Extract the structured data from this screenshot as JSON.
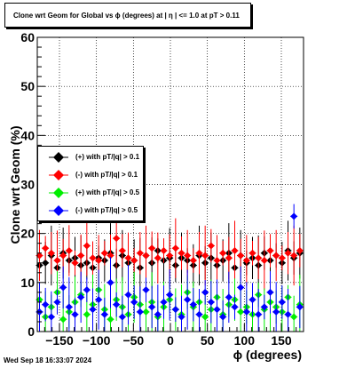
{
  "chart_data": {
    "type": "scatter",
    "title": "Clone wrt Geom for Global vs ϕ (degrees) at |  η | <= 1.0 at pT > 0.11",
    "xlabel": "ϕ (degrees)",
    "ylabel": "Clone wrt Geom (%)",
    "xlim": [
      -180,
      180
    ],
    "ylim": [
      0,
      60
    ],
    "xticks": [
      -150,
      -100,
      -50,
      0,
      50,
      100,
      150
    ],
    "xtick_labels": [
      "−150",
      "−100",
      "−50",
      "0",
      "50",
      "100",
      "150"
    ],
    "yticks": [
      0,
      10,
      20,
      30,
      40,
      50,
      60
    ],
    "grid": true,
    "legend_placement": "middle-left",
    "series": [
      {
        "name": "(+) with pT/|q| > 0.1",
        "color": "#000000",
        "marker": "diamond",
        "x": [
          -177,
          -169,
          -161,
          -153,
          -145,
          -137,
          -129,
          -121,
          -113,
          -105,
          -97,
          -89,
          -81,
          -73,
          -65,
          -57,
          -49,
          -41,
          -33,
          -25,
          -17,
          -9,
          -1,
          7,
          15,
          23,
          31,
          39,
          47,
          55,
          63,
          71,
          79,
          87,
          95,
          103,
          111,
          119,
          127,
          135,
          143,
          151,
          159,
          167,
          175
        ],
        "y": [
          13.5,
          14.0,
          15.5,
          13.0,
          16.0,
          14.5,
          15.0,
          13.5,
          14.0,
          13.0,
          15.0,
          14.5,
          16.0,
          13.5,
          15.5,
          14.0,
          14.5,
          13.0,
          15.5,
          14.0,
          16.5,
          14.5,
          15.0,
          13.5,
          15.0,
          14.5,
          13.5,
          15.5,
          14.0,
          15.0,
          13.5,
          14.5,
          16.0,
          13.0,
          15.5,
          14.0,
          15.0,
          13.5,
          16.0,
          14.5,
          15.5,
          14.0,
          16.5,
          15.0,
          16.0
        ]
      },
      {
        "name": "(-) with pT/|q| > 0.1",
        "color": "#ff0000",
        "marker": "diamond",
        "x": [
          -177,
          -169,
          -161,
          -153,
          -145,
          -137,
          -129,
          -121,
          -113,
          -105,
          -97,
          -89,
          -81,
          -73,
          -65,
          -57,
          -49,
          -41,
          -33,
          -25,
          -17,
          -9,
          -1,
          7,
          15,
          23,
          31,
          39,
          47,
          55,
          63,
          71,
          79,
          87,
          95,
          103,
          111,
          119,
          127,
          135,
          143,
          151,
          159,
          167,
          175
        ],
        "y": [
          15.5,
          17.0,
          16.0,
          14.5,
          15.5,
          16.5,
          14.0,
          15.5,
          17.5,
          15.0,
          14.5,
          16.0,
          15.5,
          19.0,
          16.5,
          15.0,
          14.5,
          16.0,
          15.5,
          17.0,
          15.0,
          16.5,
          15.5,
          17.0,
          16.0,
          15.5,
          14.5,
          16.0,
          15.5,
          17.5,
          14.5,
          16.0,
          15.0,
          16.5,
          15.5,
          14.5,
          16.0,
          15.0,
          14.5,
          16.5,
          15.5,
          15.0,
          16.0,
          15.5,
          16.5
        ]
      },
      {
        "name": "(+) with pT/|q| > 0.5",
        "color": "#00ee00",
        "marker": "diamond",
        "x": [
          -177,
          -169,
          -161,
          -153,
          -145,
          -137,
          -129,
          -121,
          -113,
          -105,
          -97,
          -89,
          -81,
          -73,
          -65,
          -57,
          -49,
          -41,
          -33,
          -25,
          -17,
          -9,
          -1,
          7,
          15,
          23,
          31,
          39,
          47,
          55,
          63,
          71,
          79,
          87,
          95,
          103,
          111,
          119,
          127,
          135,
          143,
          151,
          159,
          167,
          175
        ],
        "y": [
          6.5,
          3.0,
          5.0,
          8.0,
          2.5,
          4.0,
          6.0,
          7.5,
          3.5,
          5.5,
          8.5,
          4.5,
          2.5,
          6.5,
          5.0,
          3.5,
          7.0,
          5.5,
          4.0,
          6.0,
          3.0,
          5.0,
          6.5,
          4.5,
          3.5,
          8.0,
          5.0,
          6.0,
          3.0,
          4.5,
          7.0,
          3.5,
          5.5,
          6.5,
          4.0,
          5.0,
          3.5,
          7.5,
          4.5,
          6.0,
          5.0,
          4.0,
          7.0,
          3.0,
          5.5
        ]
      },
      {
        "name": "(-) with pT/|q| > 0.5",
        "color": "#0000ff",
        "marker": "diamond",
        "x": [
          -177,
          -169,
          -161,
          -153,
          -145,
          -137,
          -129,
          -121,
          -113,
          -105,
          -97,
          -89,
          -81,
          -73,
          -65,
          -57,
          -49,
          -41,
          -33,
          -25,
          -17,
          -9,
          -1,
          7,
          15,
          23,
          31,
          39,
          47,
          55,
          63,
          71,
          79,
          87,
          95,
          103,
          111,
          119,
          127,
          135,
          143,
          151,
          159,
          167,
          175
        ],
        "y": [
          4.0,
          5.5,
          3.0,
          6.0,
          9.0,
          5.0,
          3.5,
          7.0,
          8.5,
          4.5,
          6.5,
          3.5,
          10.0,
          5.5,
          3.0,
          7.5,
          6.0,
          4.0,
          8.5,
          5.0,
          3.5,
          6.0,
          7.5,
          4.5,
          3.0,
          6.5,
          5.5,
          3.5,
          8.0,
          6.0,
          4.5,
          3.0,
          7.0,
          5.0,
          9.0,
          4.0,
          6.5,
          3.5,
          5.0,
          8.0,
          4.0,
          6.0,
          3.5,
          23.5,
          5.0
        ]
      }
    ]
  },
  "footer": {
    "timestamp": "Wed Sep 18 16:33:07 2024"
  }
}
